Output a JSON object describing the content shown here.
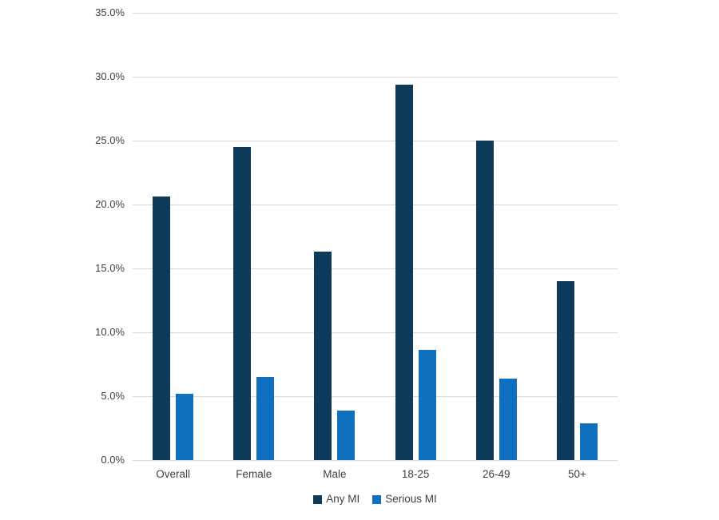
{
  "chart_data": {
    "type": "bar",
    "title": "",
    "categories": [
      "Overall",
      "Female",
      "Male",
      "18-25",
      "26-49",
      "50+"
    ],
    "series": [
      {
        "name": "Any MI",
        "color": "#0e3a5c",
        "values": [
          20.6,
          24.5,
          16.3,
          29.4,
          25.0,
          14.0
        ]
      },
      {
        "name": "Serious MI",
        "color": "#0f70c0",
        "values": [
          5.2,
          6.5,
          3.9,
          8.6,
          6.4,
          2.9
        ]
      }
    ],
    "xlabel": "",
    "ylabel": "",
    "ylim": [
      0,
      35
    ],
    "ytick_step": 5,
    "ytick_format": "percent_one_decimal",
    "ytick_labels": [
      "0.0%",
      "5.0%",
      "10.0%",
      "15.0%",
      "20.0%",
      "25.0%",
      "30.0%",
      "35.0%"
    ],
    "grid": true,
    "gridline_color": "#d9d9d9",
    "axis_text_color": "#404040",
    "legend_position": "bottom",
    "legend_labels": [
      "Any MI",
      "Serious MI"
    ]
  }
}
